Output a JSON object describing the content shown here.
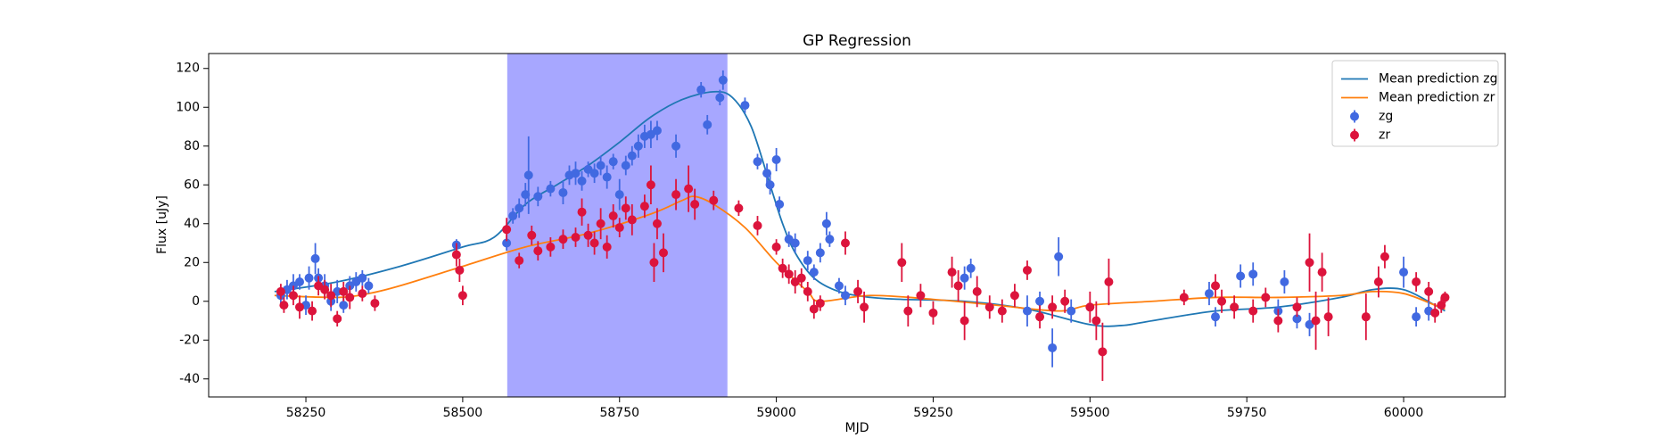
{
  "chart_data": {
    "type": "scatter",
    "title": "GP Regression",
    "xlabel": "MJD",
    "ylabel": "Flux [uJy]",
    "xlim": [
      58095,
      60162
    ],
    "ylim": [
      -49.3,
      127.7
    ],
    "xticks": [
      58250,
      58500,
      58750,
      59000,
      59250,
      59500,
      59750,
      60000
    ],
    "yticks": [
      -40,
      -20,
      0,
      20,
      40,
      60,
      80,
      100,
      120
    ],
    "span": [
      58571,
      58922
    ],
    "span_color": "#a7a7ff",
    "legend": "upper right",
    "series": [
      {
        "name": "Mean prediction zg",
        "kind": "line",
        "color": "#1f77b4",
        "x": [
          58200,
          58300,
          58400,
          58500,
          58550,
          58600,
          58650,
          58700,
          58750,
          58800,
          58850,
          58900,
          58930,
          58960,
          58990,
          59010,
          59030,
          59060,
          59100,
          59150,
          59200,
          59300,
          59400,
          59500,
          59550,
          59600,
          59700,
          59800,
          59900,
          59950,
          60000,
          60050,
          60066
        ],
        "values": [
          5,
          10,
          18,
          28,
          33,
          50,
          60,
          70,
          82,
          95,
          104,
          108,
          105,
          90,
          60,
          40,
          25,
          12,
          5,
          2,
          1,
          0,
          -4,
          -12,
          -12.5,
          -10,
          -5,
          -3,
          2,
          6,
          6,
          -2,
          -5
        ]
      },
      {
        "name": "Mean prediction zr",
        "kind": "line",
        "color": "#ff7f0e",
        "x": [
          58200,
          58300,
          58350,
          58400,
          58500,
          58600,
          58700,
          58800,
          58850,
          58870,
          58900,
          58950,
          59000,
          59050,
          59070,
          59150,
          59250,
          59350,
          59450,
          59500,
          59600,
          59700,
          59800,
          59900,
          59950,
          60000,
          60050,
          60066
        ],
        "values": [
          3,
          2,
          4,
          8,
          18,
          28,
          35,
          45,
          52,
          54,
          50,
          38,
          20,
          5,
          0,
          3,
          1,
          -2,
          -5,
          -2,
          0,
          2,
          2,
          3,
          5,
          4,
          -2,
          -4
        ]
      },
      {
        "name": "zg",
        "kind": "errorbar",
        "color": "#4169e1",
        "x": [
          58210,
          58220,
          58230,
          58240,
          58250,
          58255,
          58265,
          58270,
          58280,
          58290,
          58300,
          58310,
          58320,
          58330,
          58340,
          58350,
          58490,
          58570,
          58580,
          58590,
          58600,
          58605,
          58620,
          58640,
          58660,
          58670,
          58680,
          58690,
          58700,
          58710,
          58720,
          58730,
          58740,
          58750,
          58760,
          58770,
          58780,
          58790,
          58800,
          58810,
          58840,
          58880,
          58890,
          58910,
          58915,
          58950,
          58970,
          58985,
          58990,
          59000,
          59005,
          59020,
          59030,
          59050,
          59060,
          59070,
          59080,
          59085,
          59100,
          59110,
          59300,
          59310,
          59400,
          59420,
          59440,
          59450,
          59470,
          59690,
          59700,
          59740,
          59760,
          59800,
          59810,
          59830,
          59850,
          60000,
          60020,
          60040
        ],
        "values": [
          3,
          6,
          8,
          10,
          -2,
          12,
          22,
          12,
          8,
          0,
          5,
          -2,
          8,
          10,
          12,
          8,
          29,
          30,
          44,
          48,
          55,
          65,
          54,
          58,
          56,
          65,
          66,
          62,
          68,
          66,
          70,
          64,
          72,
          55,
          70,
          75,
          80,
          85,
          86,
          88,
          80,
          109,
          91,
          105,
          114,
          101,
          72,
          66,
          60,
          73,
          50,
          32,
          30,
          21,
          15,
          25,
          40,
          32,
          8,
          3,
          12,
          17,
          -5,
          0,
          -24,
          23,
          -5,
          4,
          -8,
          13,
          14,
          -5,
          10,
          -9,
          -12,
          15,
          -8,
          -5
        ],
        "errors": [
          4,
          5,
          6,
          4,
          5,
          6,
          8,
          5,
          6,
          5,
          6,
          4,
          5,
          5,
          4,
          4,
          3,
          4,
          4,
          5,
          6,
          20,
          5,
          4,
          6,
          5,
          6,
          5,
          4,
          5,
          5,
          6,
          4,
          8,
          5,
          5,
          6,
          6,
          7,
          5,
          6,
          4,
          5,
          4,
          5,
          4,
          4,
          5,
          5,
          6,
          4,
          4,
          5,
          5,
          4,
          5,
          6,
          4,
          4,
          5,
          6,
          5,
          8,
          5,
          10,
          10,
          6,
          6,
          5,
          6,
          6,
          6,
          6,
          5,
          6,
          8,
          5,
          5
        ]
      },
      {
        "name": "zr",
        "kind": "errorbar",
        "color": "#dc143c",
        "x": [
          58210,
          58215,
          58230,
          58240,
          58260,
          58270,
          58280,
          58290,
          58300,
          58310,
          58320,
          58340,
          58360,
          58490,
          58495,
          58500,
          58570,
          58590,
          58610,
          58620,
          58640,
          58660,
          58680,
          58690,
          58700,
          58710,
          58720,
          58730,
          58740,
          58750,
          58760,
          58770,
          58790,
          58800,
          58805,
          58810,
          58820,
          58840,
          58860,
          58870,
          58900,
          58940,
          58970,
          59000,
          59010,
          59020,
          59030,
          59040,
          59050,
          59060,
          59070,
          59110,
          59130,
          59140,
          59200,
          59210,
          59230,
          59250,
          59280,
          59290,
          59300,
          59320,
          59340,
          59360,
          59380,
          59400,
          59420,
          59440,
          59460,
          59500,
          59510,
          59520,
          59530,
          59650,
          59700,
          59710,
          59730,
          59760,
          59780,
          59800,
          59830,
          59850,
          59860,
          59870,
          59880,
          59940,
          59960,
          59970,
          60020,
          60040,
          60050,
          60060,
          60066
        ],
        "values": [
          5,
          -2,
          3,
          -3,
          -5,
          8,
          6,
          3,
          -9,
          5,
          2,
          4,
          -1,
          24,
          16,
          3,
          37,
          21,
          34,
          26,
          28,
          32,
          33,
          46,
          34,
          30,
          40,
          28,
          44,
          38,
          48,
          42,
          49,
          60,
          20,
          40,
          25,
          55,
          58,
          50,
          52,
          48,
          39,
          28,
          17,
          14,
          10,
          12,
          5,
          -4,
          -1,
          30,
          5,
          -3,
          20,
          -5,
          3,
          -6,
          15,
          8,
          -10,
          5,
          -3,
          -5,
          3,
          16,
          -8,
          -3,
          0,
          -3,
          -10,
          -26,
          10,
          2,
          8,
          0,
          -3,
          -5,
          2,
          -10,
          -3,
          20,
          -10,
          15,
          -8,
          -8,
          10,
          23,
          10,
          5,
          -6,
          -2,
          2
        ],
        "errors": [
          4,
          4,
          5,
          6,
          5,
          5,
          5,
          6,
          4,
          5,
          6,
          4,
          4,
          6,
          6,
          5,
          6,
          4,
          5,
          5,
          5,
          5,
          5,
          7,
          6,
          6,
          8,
          6,
          6,
          5,
          6,
          8,
          6,
          10,
          10,
          8,
          10,
          8,
          12,
          8,
          5,
          4,
          5,
          4,
          5,
          5,
          6,
          5,
          5,
          5,
          4,
          6,
          6,
          8,
          10,
          8,
          6,
          6,
          8,
          8,
          10,
          8,
          6,
          6,
          6,
          5,
          6,
          6,
          6,
          8,
          10,
          15,
          12,
          4,
          6,
          6,
          6,
          6,
          5,
          6,
          5,
          15,
          15,
          10,
          10,
          12,
          8,
          6,
          5,
          5,
          5,
          4,
          3
        ]
      }
    ]
  }
}
